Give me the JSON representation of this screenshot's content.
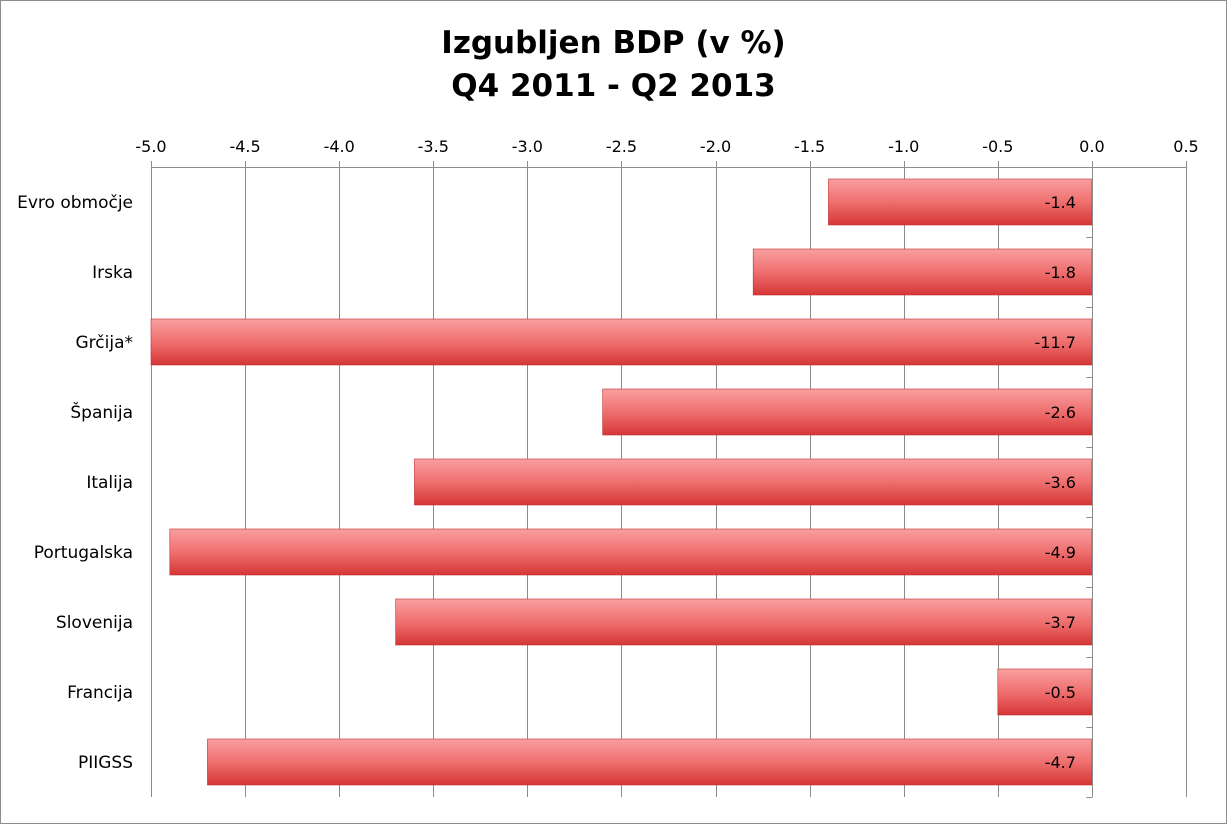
{
  "chart_data": {
    "type": "bar",
    "orientation": "horizontal",
    "title": "Izgubljen BDP (v %)",
    "subtitle": "Q4 2011 - Q2 2013",
    "xlabel": "",
    "ylabel": "",
    "xlim": [
      -5.0,
      0.5
    ],
    "x_ticks": [
      "-5.0",
      "-4.5",
      "-4.0",
      "-3.5",
      "-3.0",
      "-2.5",
      "-2.0",
      "-1.5",
      "-1.0",
      "-0.5",
      "0.0",
      "0.5"
    ],
    "x_axis_position": "top",
    "grid": "vertical",
    "legend": "none",
    "categories": [
      "Evro območje",
      "Irska",
      "Grčija*",
      "Španija",
      "Italija",
      "Portugalska",
      "Slovenija",
      "Francija",
      "PIIGSS"
    ],
    "values": [
      -1.4,
      -1.8,
      -11.7,
      -2.6,
      -3.6,
      -4.9,
      -3.7,
      -0.5,
      -4.7
    ],
    "data_labels": [
      "-1.4",
      "-1.8",
      "-11.7",
      "-2.6",
      "-3.6",
      "-4.9",
      "-3.7",
      "-0.5",
      "-4.7"
    ],
    "colors": {
      "bar_top": "#f9a0a0",
      "bar_mid": "#ef6f6f",
      "bar_bottom": "#d63636",
      "bar_edge": "#c03030",
      "grid": "#8c8c8c",
      "axis": "#8c8c8c"
    }
  }
}
